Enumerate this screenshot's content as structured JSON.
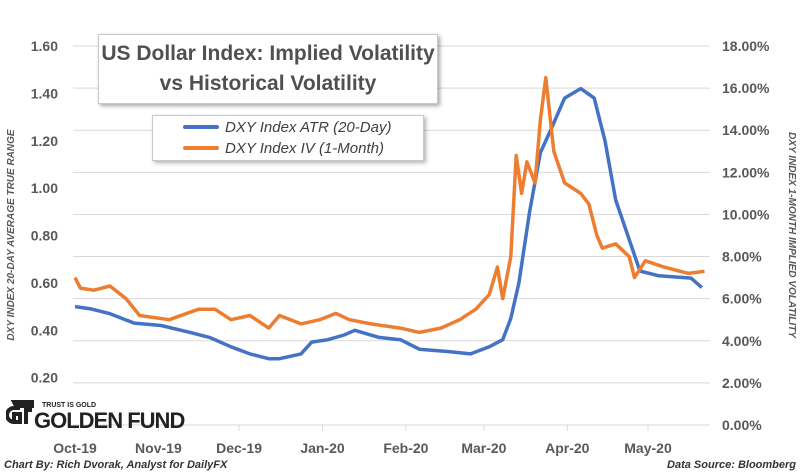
{
  "chart_data": {
    "type": "line",
    "title_line1": "US Dollar Index: Implied Volatility",
    "title_line2": "vs Historical Volatility",
    "ylabel_left": "DXY INDEX 20-DAY AVERAGE TRUE RANGE",
    "ylabel_right": "DXY INDEX 1-MONTH IMPLIED VOLATILITY",
    "ylim_left": [
      0,
      1.6
    ],
    "ylim_right": [
      0,
      18
    ],
    "left_ticks": [
      "0.20",
      "0.40",
      "0.60",
      "0.80",
      "1.00",
      "1.20",
      "1.40",
      "1.60"
    ],
    "right_ticks": [
      "0.00%",
      "2.00%",
      "4.00%",
      "6.00%",
      "8.00%",
      "10.00%",
      "12.00%",
      "14.00%",
      "16.00%",
      "18.00%"
    ],
    "x_ticks": [
      "Oct-19",
      "Nov-19",
      "Dec-19",
      "Jan-20",
      "Feb-20",
      "Mar-20",
      "Apr-20",
      "May-20"
    ],
    "x_unit": "days since 2019-10-01",
    "x_tick_days": [
      0,
      31,
      61,
      92,
      123,
      152,
      183,
      213
    ],
    "xlim": [
      0,
      236
    ],
    "grid": true,
    "legend_placement": "top-left",
    "series": [
      {
        "name": "DXY Index ATR (20-Day)",
        "axis": "left",
        "color": "#4472C4",
        "points": [
          [
            0,
            0.5
          ],
          [
            6,
            0.49
          ],
          [
            13,
            0.47
          ],
          [
            22,
            0.43
          ],
          [
            32,
            0.42
          ],
          [
            43,
            0.39
          ],
          [
            50,
            0.37
          ],
          [
            58,
            0.33
          ],
          [
            65,
            0.3
          ],
          [
            72,
            0.28
          ],
          [
            76,
            0.28
          ],
          [
            84,
            0.3
          ],
          [
            88,
            0.35
          ],
          [
            94,
            0.36
          ],
          [
            100,
            0.38
          ],
          [
            104,
            0.4
          ],
          [
            113,
            0.37
          ],
          [
            121,
            0.36
          ],
          [
            128,
            0.32
          ],
          [
            139,
            0.31
          ],
          [
            147,
            0.3
          ],
          [
            154,
            0.33
          ],
          [
            159,
            0.36
          ],
          [
            162,
            0.45
          ],
          [
            165,
            0.6
          ],
          [
            169,
            0.9
          ],
          [
            173,
            1.15
          ],
          [
            177,
            1.25
          ],
          [
            182,
            1.38
          ],
          [
            188,
            1.42
          ],
          [
            193,
            1.38
          ],
          [
            197,
            1.2
          ],
          [
            201,
            0.95
          ],
          [
            204,
            0.85
          ],
          [
            210,
            0.65
          ],
          [
            217,
            0.63
          ],
          [
            229,
            0.62
          ],
          [
            233,
            0.58
          ]
        ]
      },
      {
        "name": "DXY Index IV (1-Month)",
        "axis": "right",
        "color": "#ED7D31",
        "points": [
          [
            0,
            7.0
          ],
          [
            2,
            6.5
          ],
          [
            7,
            6.4
          ],
          [
            13,
            6.6
          ],
          [
            19,
            6.0
          ],
          [
            24,
            5.2
          ],
          [
            35,
            5.0
          ],
          [
            46,
            5.5
          ],
          [
            52,
            5.5
          ],
          [
            58,
            5.0
          ],
          [
            65,
            5.2
          ],
          [
            72,
            4.6
          ],
          [
            76,
            5.2
          ],
          [
            84,
            4.8
          ],
          [
            91,
            5.0
          ],
          [
            97,
            5.3
          ],
          [
            102,
            5.0
          ],
          [
            110,
            4.8
          ],
          [
            121,
            4.6
          ],
          [
            128,
            4.4
          ],
          [
            136,
            4.6
          ],
          [
            143,
            5.0
          ],
          [
            149,
            5.5
          ],
          [
            154,
            6.2
          ],
          [
            157,
            7.5
          ],
          [
            159,
            6.0
          ],
          [
            162,
            8.0
          ],
          [
            164,
            12.8
          ],
          [
            166,
            11.0
          ],
          [
            168,
            12.5
          ],
          [
            171,
            11.5
          ],
          [
            173,
            14.5
          ],
          [
            175,
            16.5
          ],
          [
            178,
            13.0
          ],
          [
            182,
            11.5
          ],
          [
            188,
            11.0
          ],
          [
            191,
            10.5
          ],
          [
            194,
            9.0
          ],
          [
            196,
            8.4
          ],
          [
            201,
            8.6
          ],
          [
            206,
            8.0
          ],
          [
            208,
            7.0
          ],
          [
            212,
            7.8
          ],
          [
            219,
            7.5
          ],
          [
            228,
            7.2
          ],
          [
            234,
            7.3
          ]
        ]
      }
    ],
    "credit": "Chart By: Rich Dvorak, Analyst for DailyFX",
    "source": "Data Source: Bloomberg"
  },
  "logo": {
    "tagline": "TRUST IS GOLD",
    "name": "GOLDEN FUND"
  }
}
